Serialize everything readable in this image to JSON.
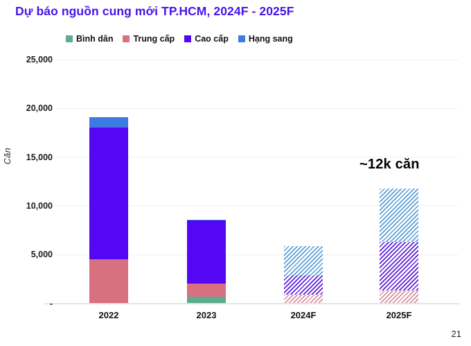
{
  "title": "Dự báo nguồn cung mới TP.HCM, 2024F - 2025F",
  "title_color": "#4814EA",
  "annotation": "~12k căn",
  "page_number": "21",
  "colors": {
    "background": "#ffffff",
    "gridline": "#f0f0f3",
    "axis_baseline": "#e4e4e8",
    "title": "#4814EA"
  },
  "chart_data": {
    "type": "bar",
    "stacked": true,
    "title": "Dự báo nguồn cung mới TP.HCM, 2024F - 2025F",
    "xlabel": "",
    "ylabel": "Căn",
    "ylim": [
      0,
      25000
    ],
    "grid": true,
    "legend_position": "top",
    "categories": [
      "2022",
      "2023",
      "2024F",
      "2025F"
    ],
    "forecast": [
      false,
      false,
      true,
      true
    ],
    "series": [
      {
        "name": "Bình dân",
        "key": "binh-dan",
        "color": "#5CAD8C",
        "hatch_color": "#7FC2A5",
        "values": [
          0,
          700,
          0,
          0
        ]
      },
      {
        "name": "Trung cấp",
        "key": "trung-cap",
        "color": "#D97080",
        "hatch_color": "#D68F9E",
        "values": [
          4500,
          1300,
          900,
          1300
        ]
      },
      {
        "name": "Cao cấp",
        "key": "cao-cap",
        "color": "#5307F2",
        "hatch_color": "#5A1FD9",
        "values": [
          13500,
          6500,
          2000,
          5000
        ]
      },
      {
        "name": "Hạng sang",
        "key": "hang-sang",
        "color": "#3E79E4",
        "hatch_color": "#5C9FD9",
        "values": [
          1100,
          100,
          3000,
          5500
        ]
      }
    ],
    "estimated_totals": [
      19100,
      8600,
      5900,
      11800
    ],
    "tick_values": [
      25000,
      20000,
      15000,
      10000,
      5000,
      0
    ],
    "tick_labels": [
      "25,000",
      "20,000",
      "15,000",
      "10,000",
      "5,000",
      "-"
    ],
    "annotations": [
      {
        "text": "~12k căn",
        "target_category": "2025F"
      }
    ]
  }
}
